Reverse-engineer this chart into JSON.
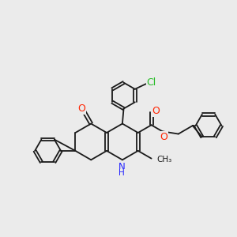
{
  "background_color": "#ebebeb",
  "bond_color": "#1a1a1a",
  "figsize": [
    3.0,
    3.0
  ],
  "dpi": 100,
  "colors": {
    "Cl": "#22bb22",
    "O": "#ff2200",
    "N": "#2222ff",
    "C": "#1a1a1a"
  }
}
